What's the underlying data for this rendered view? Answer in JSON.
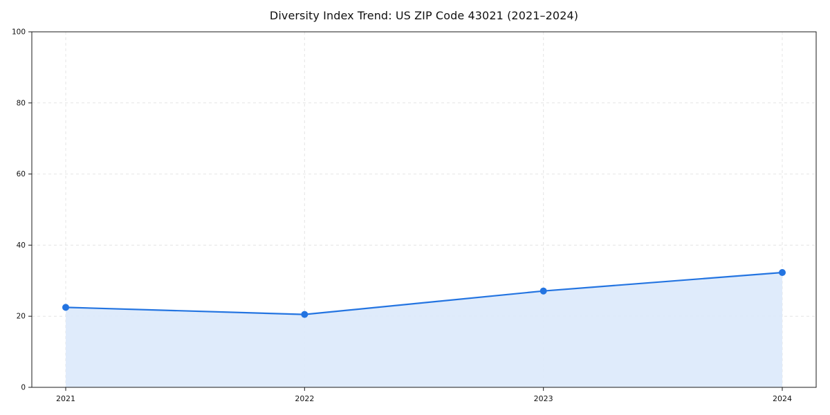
{
  "chart_data": {
    "type": "line",
    "title": "Diversity Index Trend: US ZIP Code 43021 (2021–2024)",
    "categories": [
      "2021",
      "2022",
      "2023",
      "2024"
    ],
    "series": [
      {
        "name": "Diversity Index",
        "values": [
          22.5,
          20.5,
          27.1,
          32.3
        ]
      }
    ],
    "xlabel": "",
    "ylabel": "",
    "ylim": [
      0,
      100
    ],
    "yticks": [
      0,
      20,
      40,
      60,
      80,
      100
    ],
    "grid": true,
    "grid_style": "dashed",
    "legend": false,
    "colors": {
      "line": "#2374e1",
      "fill": "#dbe9fb",
      "grid": "#e4e4e4",
      "axis": "#1a1a1a",
      "tick_label": "#111111"
    }
  }
}
